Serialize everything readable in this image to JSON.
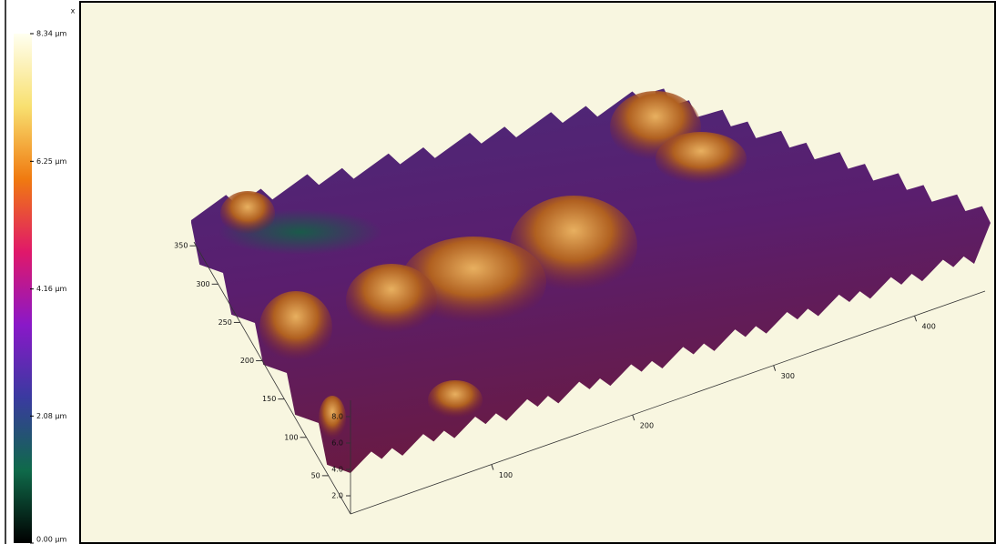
{
  "ui": {
    "close": "x"
  },
  "chart_data": {
    "type": "surface3d",
    "colorbar": {
      "lim": [
        0,
        8.34
      ],
      "colors": [
        "#000000",
        "#0f6a4a",
        "#3a3aa0",
        "#8a18c8",
        "#e0186a",
        "#f07a10",
        "#f8e070",
        "#fffff0"
      ],
      "ticks": [
        {
          "value": 8.34,
          "label": "8.34 µm"
        },
        {
          "value": 6.25,
          "label": "6.25 µm"
        },
        {
          "value": 4.16,
          "label": "4.16 µm"
        },
        {
          "value": 2.08,
          "label": "2.08 µm"
        },
        {
          "value": 0,
          "label": "0.00 µm"
        }
      ]
    },
    "xlim": [
      0,
      450
    ],
    "xticks": [
      100,
      200,
      300,
      400
    ],
    "ylim": [
      0,
      355
    ],
    "yticks": [
      50,
      100,
      150,
      200,
      250,
      300,
      350
    ],
    "zlim": [
      0,
      8
    ],
    "zticks": [
      {
        "value": 2,
        "label": "2.0"
      },
      {
        "value": 4,
        "label": "4.0"
      },
      {
        "value": 6,
        "label": "6.0"
      },
      {
        "value": 8,
        "label": "8.0"
      }
    ]
  }
}
